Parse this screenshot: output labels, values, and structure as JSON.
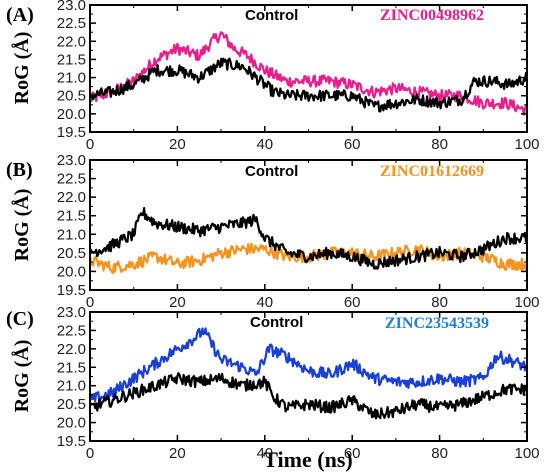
{
  "colors": {
    "control": "#000000",
    "lig_A": "#e91e8c",
    "lig_B": "#f7931e",
    "lig_C": "#1a3fd6",
    "legend_A": "#e91e8c",
    "legend_B": "#f7931e",
    "legend_C": "#1e7fd6"
  },
  "figure": {
    "xlabel": "Time (ns)"
  },
  "chart_data": [
    {
      "type": "line",
      "panel": "(A)",
      "ylabel": "RoG (Å)",
      "xlim": [
        0,
        100
      ],
      "ylim": [
        19.5,
        23.0
      ],
      "xticks": [
        "0",
        "20",
        "40",
        "60",
        "80",
        "100"
      ],
      "yticks": [
        "19.5",
        "20.0",
        "20.5",
        "21.0",
        "21.5",
        "22.0",
        "22.5",
        "23.0"
      ],
      "series": [
        {
          "name": "Control",
          "x": [
            0,
            5,
            10,
            15,
            20,
            25,
            30,
            35,
            38,
            42,
            45,
            50,
            55,
            60,
            65,
            70,
            75,
            80,
            85,
            88,
            92,
            96,
            100
          ],
          "y": [
            20.5,
            20.6,
            20.8,
            21.2,
            21.2,
            21.0,
            21.4,
            21.3,
            21.0,
            20.6,
            20.5,
            20.5,
            20.5,
            20.5,
            20.2,
            20.3,
            20.4,
            20.3,
            20.4,
            20.9,
            20.9,
            20.8,
            21.0
          ]
        },
        {
          "name": "ZINC00498962",
          "x": [
            0,
            5,
            10,
            15,
            20,
            25,
            28,
            30,
            33,
            36,
            40,
            45,
            50,
            55,
            60,
            65,
            70,
            75,
            80,
            85,
            90,
            95,
            100
          ],
          "y": [
            20.4,
            20.6,
            20.9,
            21.5,
            21.8,
            21.6,
            22.0,
            22.2,
            21.8,
            21.6,
            21.2,
            20.9,
            20.9,
            20.9,
            20.8,
            20.6,
            20.7,
            20.6,
            20.5,
            20.5,
            20.3,
            20.3,
            20.1
          ]
        }
      ]
    },
    {
      "type": "line",
      "panel": "(B)",
      "ylabel": "RoG (Å)",
      "xlim": [
        0,
        100
      ],
      "ylim": [
        19.5,
        23.0
      ],
      "xticks": [
        "0",
        "20",
        "40",
        "60",
        "80",
        "100"
      ],
      "yticks": [
        "19.5",
        "20.0",
        "20.5",
        "21.0",
        "21.5",
        "22.0",
        "22.5",
        "23.0"
      ],
      "series": [
        {
          "name": "Control",
          "x": [
            0,
            5,
            10,
            12,
            15,
            20,
            25,
            30,
            35,
            38,
            40,
            45,
            50,
            55,
            60,
            65,
            70,
            75,
            80,
            85,
            90,
            95,
            100
          ],
          "y": [
            20.5,
            20.7,
            21.0,
            21.6,
            21.3,
            21.2,
            21.1,
            21.2,
            21.3,
            21.4,
            20.9,
            20.5,
            20.4,
            20.5,
            20.4,
            20.2,
            20.3,
            20.4,
            20.5,
            20.4,
            20.6,
            20.9,
            20.9
          ]
        },
        {
          "name": "ZINC01612669",
          "x": [
            0,
            5,
            10,
            15,
            20,
            25,
            30,
            35,
            40,
            45,
            50,
            55,
            60,
            65,
            70,
            75,
            80,
            85,
            90,
            95,
            100
          ],
          "y": [
            20.3,
            20.1,
            20.2,
            20.4,
            20.2,
            20.3,
            20.5,
            20.6,
            20.6,
            20.4,
            20.4,
            20.5,
            20.5,
            20.4,
            20.5,
            20.6,
            20.4,
            20.5,
            20.4,
            20.2,
            20.2
          ]
        }
      ]
    },
    {
      "type": "line",
      "panel": "(C)",
      "ylabel": "RoG (Å)",
      "xlim": [
        0,
        100
      ],
      "ylim": [
        19.5,
        23.0
      ],
      "xticks": [
        "0",
        "20",
        "40",
        "60",
        "80",
        "100"
      ],
      "yticks": [
        "19.5",
        "20.0",
        "20.5",
        "21.0",
        "21.5",
        "22.0",
        "22.5",
        "23.0"
      ],
      "series": [
        {
          "name": "Control",
          "x": [
            0,
            5,
            10,
            15,
            20,
            25,
            30,
            35,
            40,
            42,
            45,
            50,
            55,
            60,
            65,
            70,
            75,
            80,
            85,
            90,
            95,
            100
          ],
          "y": [
            20.4,
            20.6,
            20.8,
            21.0,
            21.2,
            21.1,
            21.2,
            21.0,
            21.1,
            20.7,
            20.4,
            20.5,
            20.4,
            20.6,
            20.2,
            20.3,
            20.5,
            20.4,
            20.5,
            20.7,
            20.9,
            20.9
          ]
        },
        {
          "name": "ZINC23543539",
          "x": [
            0,
            5,
            10,
            15,
            20,
            24,
            26,
            30,
            35,
            38,
            41,
            45,
            50,
            55,
            60,
            65,
            70,
            75,
            80,
            85,
            90,
            93,
            96,
            100
          ],
          "y": [
            20.6,
            20.8,
            21.2,
            21.6,
            22.0,
            22.3,
            22.5,
            21.7,
            21.5,
            21.3,
            22.0,
            21.8,
            21.4,
            21.3,
            21.6,
            21.2,
            21.1,
            21.1,
            21.2,
            21.1,
            21.2,
            21.8,
            21.7,
            21.5
          ]
        }
      ]
    }
  ]
}
